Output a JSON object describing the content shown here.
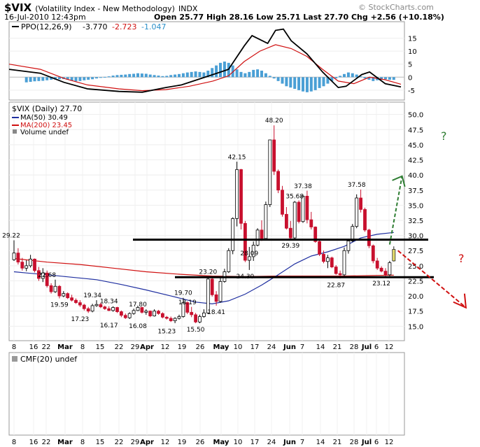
{
  "header": {
    "symbol": "$VIX",
    "name": "(Volatility Index - New Methodology)",
    "exchange": "INDX",
    "watermark": "© StockCharts.com",
    "date": "16-Jul-2010 12:43pm",
    "quote": "Open 25.77  High 28.16  Low 25.71  Last 27.70  Chg +2.56 (+10.18%)"
  },
  "ppo_panel": {
    "label": "PPO(12,26,9)",
    "values": [
      "-3.770",
      "-2.723",
      "-1.047"
    ],
    "ticks": [
      "15",
      "10",
      "5",
      "0",
      "-5"
    ]
  },
  "price_panel": {
    "legend": [
      "$VIX (Daily) 27.70",
      "MA(50) 30.49",
      "MA(200) 23.45",
      "Volume undef"
    ],
    "ticks": [
      "50.0",
      "47.5",
      "45.0",
      "42.5",
      "40.0",
      "37.5",
      "35.0",
      "32.5",
      "30.0",
      "27.5",
      "25.0",
      "22.5",
      "20.0",
      "17.5",
      "15.0"
    ],
    "question_marks": [
      "?",
      "?"
    ]
  },
  "cmf_panel": {
    "label": "CMF(20) undef"
  },
  "x_axis": {
    "labels": [
      "8",
      "16",
      "22",
      "Mar",
      "8",
      "15",
      "22",
      "29",
      "Apr",
      "12",
      "19",
      "26",
      "May",
      "10",
      "17",
      "24",
      "Jun",
      "7",
      "14",
      "21",
      "28",
      "Jul",
      "6",
      "12"
    ]
  },
  "colors": {
    "up": "#000000",
    "down": "#c8102e",
    "ma50": "#1f2fa0",
    "ma200": "#d01010",
    "histogram": "#4a9fd5",
    "ppo_line": "#000000",
    "ppo_signal": "#d01010",
    "annotation_up": "#2e7d32",
    "annotation_down": "#d01010",
    "last_candle": "#e8e070"
  },
  "chart_data": {
    "type": "candlestick",
    "title": "$VIX (Volatility Index - New Methodology)",
    "ylim": [
      14,
      51
    ],
    "y_ticks": [
      15,
      17.5,
      20,
      22.5,
      25,
      27.5,
      30,
      32.5,
      35,
      37.5,
      40,
      42.5,
      45,
      47.5,
      50
    ],
    "price_labels": [
      {
        "label": "29.22",
        "value": 29.22,
        "date": "Feb 1"
      },
      {
        "label": "22.68",
        "value": 22.68,
        "date": "Feb 16"
      },
      {
        "label": "19.59",
        "value": 19.59,
        "date": "Feb 18"
      },
      {
        "label": "17.23",
        "value": 17.23,
        "date": "Mar 2"
      },
      {
        "label": "19.34",
        "value": 19.34,
        "date": "Mar 5"
      },
      {
        "label": "18.34",
        "value": 18.34,
        "date": "Mar 12"
      },
      {
        "label": "16.17",
        "value": 16.17,
        "date": "Mar 11"
      },
      {
        "label": "17.80",
        "value": 17.8,
        "date": "Mar 31"
      },
      {
        "label": "16.08",
        "value": 16.08,
        "date": "Mar 31"
      },
      {
        "label": "15.23",
        "value": 15.23,
        "date": "Apr 12"
      },
      {
        "label": "19.70",
        "value": 19.7,
        "date": "Apr 16"
      },
      {
        "label": "18.19",
        "value": 18.19,
        "date": "Apr 20"
      },
      {
        "label": "15.50",
        "value": 15.5,
        "date": "Apr 22"
      },
      {
        "label": "23.20",
        "value": 23.2,
        "date": "Apr 28"
      },
      {
        "label": "18.41",
        "value": 18.41,
        "date": "Apr 27"
      },
      {
        "label": "42.15",
        "value": 42.15,
        "date": "May 6"
      },
      {
        "label": "28.09",
        "value": 28.09,
        "date": "May 12"
      },
      {
        "label": "24.30",
        "value": 24.3,
        "date": "May 11"
      },
      {
        "label": "48.20",
        "value": 48.2,
        "date": "May 21"
      },
      {
        "label": "29.39",
        "value": 29.39,
        "date": "May 27"
      },
      {
        "label": "35.68",
        "value": 35.68,
        "date": "Jun 4"
      },
      {
        "label": "37.38",
        "value": 37.38,
        "date": "Jun 8"
      },
      {
        "label": "22.87",
        "value": 22.87,
        "date": "Jun 21"
      },
      {
        "label": "37.58",
        "value": 37.58,
        "date": "Jun 29"
      },
      {
        "label": "23.12",
        "value": 23.12,
        "date": "Jul 12"
      }
    ],
    "candles": [
      [
        26.0,
        29.2,
        25.8,
        27.1
      ],
      [
        27.1,
        27.9,
        25.2,
        25.6
      ],
      [
        25.6,
        26.3,
        24.2,
        24.6
      ],
      [
        24.6,
        25.9,
        24.1,
        25.0
      ],
      [
        25.0,
        26.8,
        24.7,
        26.1
      ],
      [
        26.1,
        26.2,
        23.9,
        24.2
      ],
      [
        24.2,
        24.8,
        22.5,
        22.9
      ],
      [
        22.9,
        24.6,
        22.3,
        23.8
      ],
      [
        23.8,
        24.2,
        21.4,
        21.7
      ],
      [
        21.7,
        22.1,
        20.4,
        20.7
      ],
      [
        20.7,
        22.7,
        20.5,
        21.6
      ],
      [
        21.6,
        21.8,
        19.6,
        20.0
      ],
      [
        20.0,
        20.8,
        19.8,
        20.4
      ],
      [
        20.4,
        20.6,
        19.5,
        19.7
      ],
      [
        19.7,
        20.2,
        19.1,
        19.3
      ],
      [
        19.3,
        19.6,
        18.7,
        18.9
      ],
      [
        18.9,
        19.3,
        18.2,
        18.5
      ],
      [
        18.5,
        18.7,
        17.6,
        17.9
      ],
      [
        17.9,
        18.2,
        17.2,
        17.5
      ],
      [
        17.5,
        18.7,
        17.3,
        18.4
      ],
      [
        18.4,
        19.3,
        18.2,
        18.6
      ],
      [
        18.6,
        18.9,
        18.0,
        18.2
      ],
      [
        18.2,
        18.4,
        17.7,
        17.9
      ],
      [
        17.9,
        18.3,
        17.5,
        17.6
      ],
      [
        17.6,
        18.3,
        17.4,
        18.1
      ],
      [
        18.1,
        18.2,
        17.2,
        17.4
      ],
      [
        17.4,
        17.6,
        16.5,
        16.8
      ],
      [
        16.8,
        17.1,
        16.2,
        16.4
      ],
      [
        16.4,
        17.3,
        16.2,
        17.1
      ],
      [
        17.1,
        17.9,
        16.9,
        17.6
      ],
      [
        17.6,
        18.3,
        17.5,
        18.1
      ],
      [
        18.1,
        18.2,
        17.1,
        17.3
      ],
      [
        17.3,
        17.8,
        16.9,
        17.5
      ],
      [
        17.5,
        17.6,
        16.5,
        16.7
      ],
      [
        16.7,
        17.8,
        16.6,
        17.5
      ],
      [
        17.5,
        17.7,
        16.9,
        17.1
      ],
      [
        17.1,
        17.3,
        16.3,
        16.5
      ],
      [
        16.5,
        16.7,
        16.1,
        16.3
      ],
      [
        16.3,
        16.6,
        15.7,
        15.9
      ],
      [
        15.9,
        16.5,
        15.5,
        16.3
      ],
      [
        16.3,
        16.9,
        16.1,
        16.6
      ],
      [
        16.6,
        19.7,
        16.4,
        18.9
      ],
      [
        18.9,
        19.1,
        17.0,
        17.3
      ],
      [
        17.3,
        18.2,
        16.5,
        16.9
      ],
      [
        16.9,
        17.2,
        15.5,
        15.7
      ],
      [
        15.7,
        16.9,
        15.5,
        16.6
      ],
      [
        16.6,
        17.8,
        16.4,
        17.2
      ],
      [
        17.2,
        23.2,
        17.0,
        22.8
      ],
      [
        22.8,
        23.0,
        19.9,
        20.2
      ],
      [
        20.2,
        20.8,
        18.4,
        19.1
      ],
      [
        19.1,
        23.0,
        18.9,
        22.4
      ],
      [
        22.4,
        24.5,
        22.2,
        24.0
      ],
      [
        24.0,
        27.9,
        23.8,
        27.5
      ],
      [
        27.5,
        33.0,
        26.9,
        32.8
      ],
      [
        32.8,
        42.2,
        31.5,
        40.9
      ],
      [
        40.9,
        41.0,
        31.0,
        32.0
      ],
      [
        32.0,
        32.4,
        25.6,
        25.9
      ],
      [
        25.9,
        28.1,
        24.3,
        26.5
      ],
      [
        26.5,
        29.0,
        25.8,
        28.4
      ],
      [
        28.4,
        31.2,
        28.2,
        30.9
      ],
      [
        30.9,
        32.5,
        29.1,
        29.5
      ],
      [
        29.5,
        35.6,
        29.3,
        35.1
      ],
      [
        35.1,
        45.8,
        34.7,
        45.8
      ],
      [
        45.8,
        48.2,
        40.0,
        40.6
      ],
      [
        40.6,
        40.9,
        37.0,
        37.5
      ],
      [
        37.5,
        38.2,
        33.1,
        33.5
      ],
      [
        33.5,
        34.7,
        31.0,
        31.2
      ],
      [
        31.2,
        32.4,
        29.4,
        29.6
      ],
      [
        29.6,
        35.7,
        29.4,
        35.5
      ],
      [
        35.5,
        35.8,
        32.0,
        32.3
      ],
      [
        32.3,
        36.7,
        32.1,
        36.5
      ],
      [
        36.5,
        37.4,
        32.0,
        32.6
      ],
      [
        32.6,
        33.9,
        31.0,
        31.4
      ],
      [
        31.4,
        31.5,
        28.8,
        29.0
      ],
      [
        29.0,
        29.4,
        26.6,
        26.9
      ],
      [
        26.9,
        27.5,
        25.4,
        25.7
      ],
      [
        25.7,
        26.8,
        24.6,
        26.3
      ],
      [
        26.3,
        26.5,
        24.6,
        24.8
      ],
      [
        24.8,
        25.1,
        23.5,
        23.7
      ],
      [
        23.7,
        24.2,
        22.9,
        23.5
      ],
      [
        23.5,
        28.0,
        23.3,
        27.5
      ],
      [
        27.5,
        29.4,
        27.0,
        29.1
      ],
      [
        29.1,
        31.9,
        28.9,
        31.5
      ],
      [
        31.5,
        36.8,
        31.2,
        36.2
      ],
      [
        36.2,
        37.6,
        33.8,
        34.3
      ],
      [
        34.3,
        34.6,
        30.6,
        30.9
      ],
      [
        30.9,
        31.1,
        27.9,
        28.3
      ],
      [
        28.3,
        28.5,
        25.4,
        25.8
      ],
      [
        25.8,
        26.3,
        24.3,
        24.6
      ],
      [
        24.6,
        24.9,
        23.9,
        24.1
      ],
      [
        24.1,
        24.6,
        23.1,
        23.5
      ],
      [
        23.5,
        25.8,
        23.3,
        25.5
      ],
      [
        25.8,
        28.2,
        25.7,
        27.7
      ]
    ],
    "ma50": [
      [
        0,
        24.0
      ],
      [
        3,
        23.8
      ],
      [
        8,
        23.5
      ],
      [
        14,
        23.1
      ],
      [
        20,
        22.7
      ],
      [
        26,
        21.9
      ],
      [
        32,
        21.0
      ],
      [
        38,
        20.0
      ],
      [
        44,
        19.0
      ],
      [
        48,
        18.7
      ],
      [
        52,
        19.2
      ],
      [
        56,
        20.3
      ],
      [
        60,
        21.8
      ],
      [
        64,
        23.5
      ],
      [
        68,
        25.3
      ],
      [
        72,
        26.6
      ],
      [
        76,
        27.3
      ],
      [
        80,
        28.2
      ],
      [
        84,
        29.6
      ],
      [
        88,
        30.2
      ],
      [
        92,
        30.5
      ]
    ],
    "ma200": [
      [
        0,
        26.2
      ],
      [
        8,
        25.6
      ],
      [
        16,
        25.2
      ],
      [
        24,
        24.6
      ],
      [
        32,
        24.0
      ],
      [
        40,
        23.6
      ],
      [
        48,
        23.3
      ],
      [
        56,
        23.2
      ],
      [
        64,
        23.3
      ],
      [
        72,
        23.3
      ],
      [
        80,
        23.3
      ],
      [
        88,
        23.4
      ],
      [
        92,
        23.45
      ]
    ],
    "horizontal_lines": [
      29.3,
      23.1
    ],
    "ppo_ylim": [
      -8,
      20
    ],
    "ppo": [
      [
        0,
        3.0
      ],
      [
        8,
        1.5
      ],
      [
        14,
        -2.0
      ],
      [
        20,
        -4.5
      ],
      [
        28,
        -5.5
      ],
      [
        34,
        -5.8
      ],
      [
        40,
        -4.0
      ],
      [
        44,
        -3.0
      ],
      [
        48,
        -1.0
      ],
      [
        52,
        1.0
      ],
      [
        56,
        3.0
      ],
      [
        60,
        12.0
      ],
      [
        62,
        16.0
      ],
      [
        66,
        13.0
      ],
      [
        68,
        18.0
      ],
      [
        70,
        18.5
      ],
      [
        72,
        14.0
      ],
      [
        76,
        9.0
      ],
      [
        80,
        2.0
      ],
      [
        84,
        -4.0
      ],
      [
        86,
        -3.5
      ],
      [
        90,
        1.0
      ],
      [
        92,
        2.0
      ],
      [
        96,
        -2.5
      ],
      [
        100,
        -3.77
      ]
    ],
    "ppo_signal": [
      [
        0,
        5.0
      ],
      [
        8,
        3.0
      ],
      [
        14,
        -0.5
      ],
      [
        20,
        -3.0
      ],
      [
        28,
        -4.5
      ],
      [
        34,
        -5.2
      ],
      [
        40,
        -4.8
      ],
      [
        46,
        -3.5
      ],
      [
        52,
        -1.5
      ],
      [
        56,
        0.5
      ],
      [
        60,
        6.0
      ],
      [
        64,
        10.0
      ],
      [
        68,
        12.5
      ],
      [
        72,
        11.0
      ],
      [
        76,
        8.0
      ],
      [
        80,
        3.0
      ],
      [
        84,
        -1.5
      ],
      [
        88,
        -2.5
      ],
      [
        92,
        0.0
      ],
      [
        96,
        -1.0
      ],
      [
        100,
        -2.72
      ]
    ],
    "ppo_histogram": [
      -2,
      -1.8,
      -1.6,
      -1.5,
      -1.4,
      -1.2,
      -1.0,
      -0.9,
      -0.8,
      -0.7,
      -1.0,
      -1.4,
      -1.6,
      -1.5,
      -1.2,
      -1.0,
      -0.8,
      -0.5,
      -0.2,
      0.1,
      0.3,
      0.6,
      0.8,
      0.9,
      1.0,
      1.2,
      1.3,
      1.5,
      1.4,
      1.3,
      1.0,
      0.8,
      0.6,
      0.4,
      0.5,
      0.8,
      1.0,
      1.2,
      1.5,
      1.8,
      2.0,
      2.2,
      2.0,
      1.8,
      2.5,
      3.5,
      4.5,
      5.5,
      6.0,
      5.5,
      4.5,
      3.0,
      2.0,
      1.5,
      2.0,
      2.8,
      3.0,
      2.5,
      1.5,
      0.5,
      -0.5,
      -1.5,
      -2.5,
      -3.5,
      -4.0,
      -4.5,
      -5.0,
      -5.5,
      -5.8,
      -5.5,
      -5.0,
      -4.2,
      -3.5,
      -2.5,
      -1.5,
      -0.5,
      0.5,
      1.2,
      1.8,
      1.5,
      1.0,
      0.3,
      -0.5,
      -1.0,
      -1.5,
      -1.2,
      -1.0,
      -0.8,
      -1.0,
      -1.047
    ],
    "annotations": {
      "up_arrow": {
        "from": [
          91,
          28.5
        ],
        "to": [
          94,
          39.8
        ]
      },
      "down_arrow": {
        "from": [
          93,
          27.5
        ],
        "to": [
          101,
          17.5
        ]
      }
    }
  }
}
